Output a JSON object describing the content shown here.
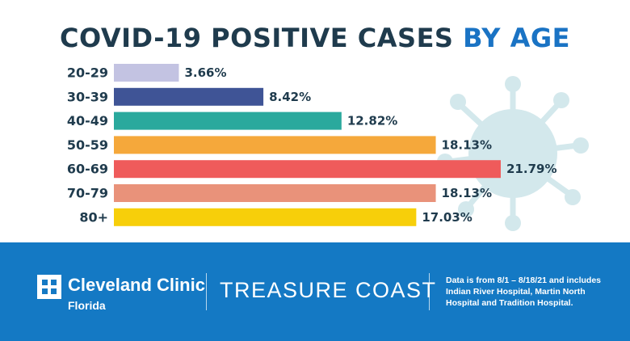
{
  "title": {
    "main": "COVID-19 POSITIVE CASES",
    "accent": "BY AGE"
  },
  "chart_data": {
    "type": "bar",
    "orientation": "horizontal",
    "title": "COVID-19 POSITIVE CASES BY AGE",
    "categories": [
      "20-29",
      "30-39",
      "40-49",
      "50-59",
      "60-69",
      "70-79",
      "80+"
    ],
    "values": [
      3.66,
      8.42,
      12.82,
      18.13,
      21.79,
      18.13,
      17.03
    ],
    "value_labels": [
      "3.66%",
      "8.42%",
      "12.82%",
      "18.13%",
      "21.79%",
      "18.13%",
      "17.03%"
    ],
    "colors": [
      "#c3c3e2",
      "#3f5496",
      "#2aa99d",
      "#f5a83b",
      "#ef5b5b",
      "#e9927a",
      "#f7cf0a"
    ],
    "grid": false,
    "legend": "none"
  },
  "footer": {
    "brand": "Cleveland Clinic",
    "brand_sub": "Florida",
    "region": "TREASURE COAST",
    "note": "Data is from 8/1 – 8/18/21 and includes Indian River Hospital, Martin North Hospital and Tradition Hospital."
  },
  "colors": {
    "title_dark": "#1f3b4d",
    "title_accent": "#1a73c4",
    "footer_bg": "#1479c4",
    "virus": "#d3e8ec"
  },
  "icons": [
    "virus-icon",
    "cleveland-clinic-logo-icon"
  ]
}
